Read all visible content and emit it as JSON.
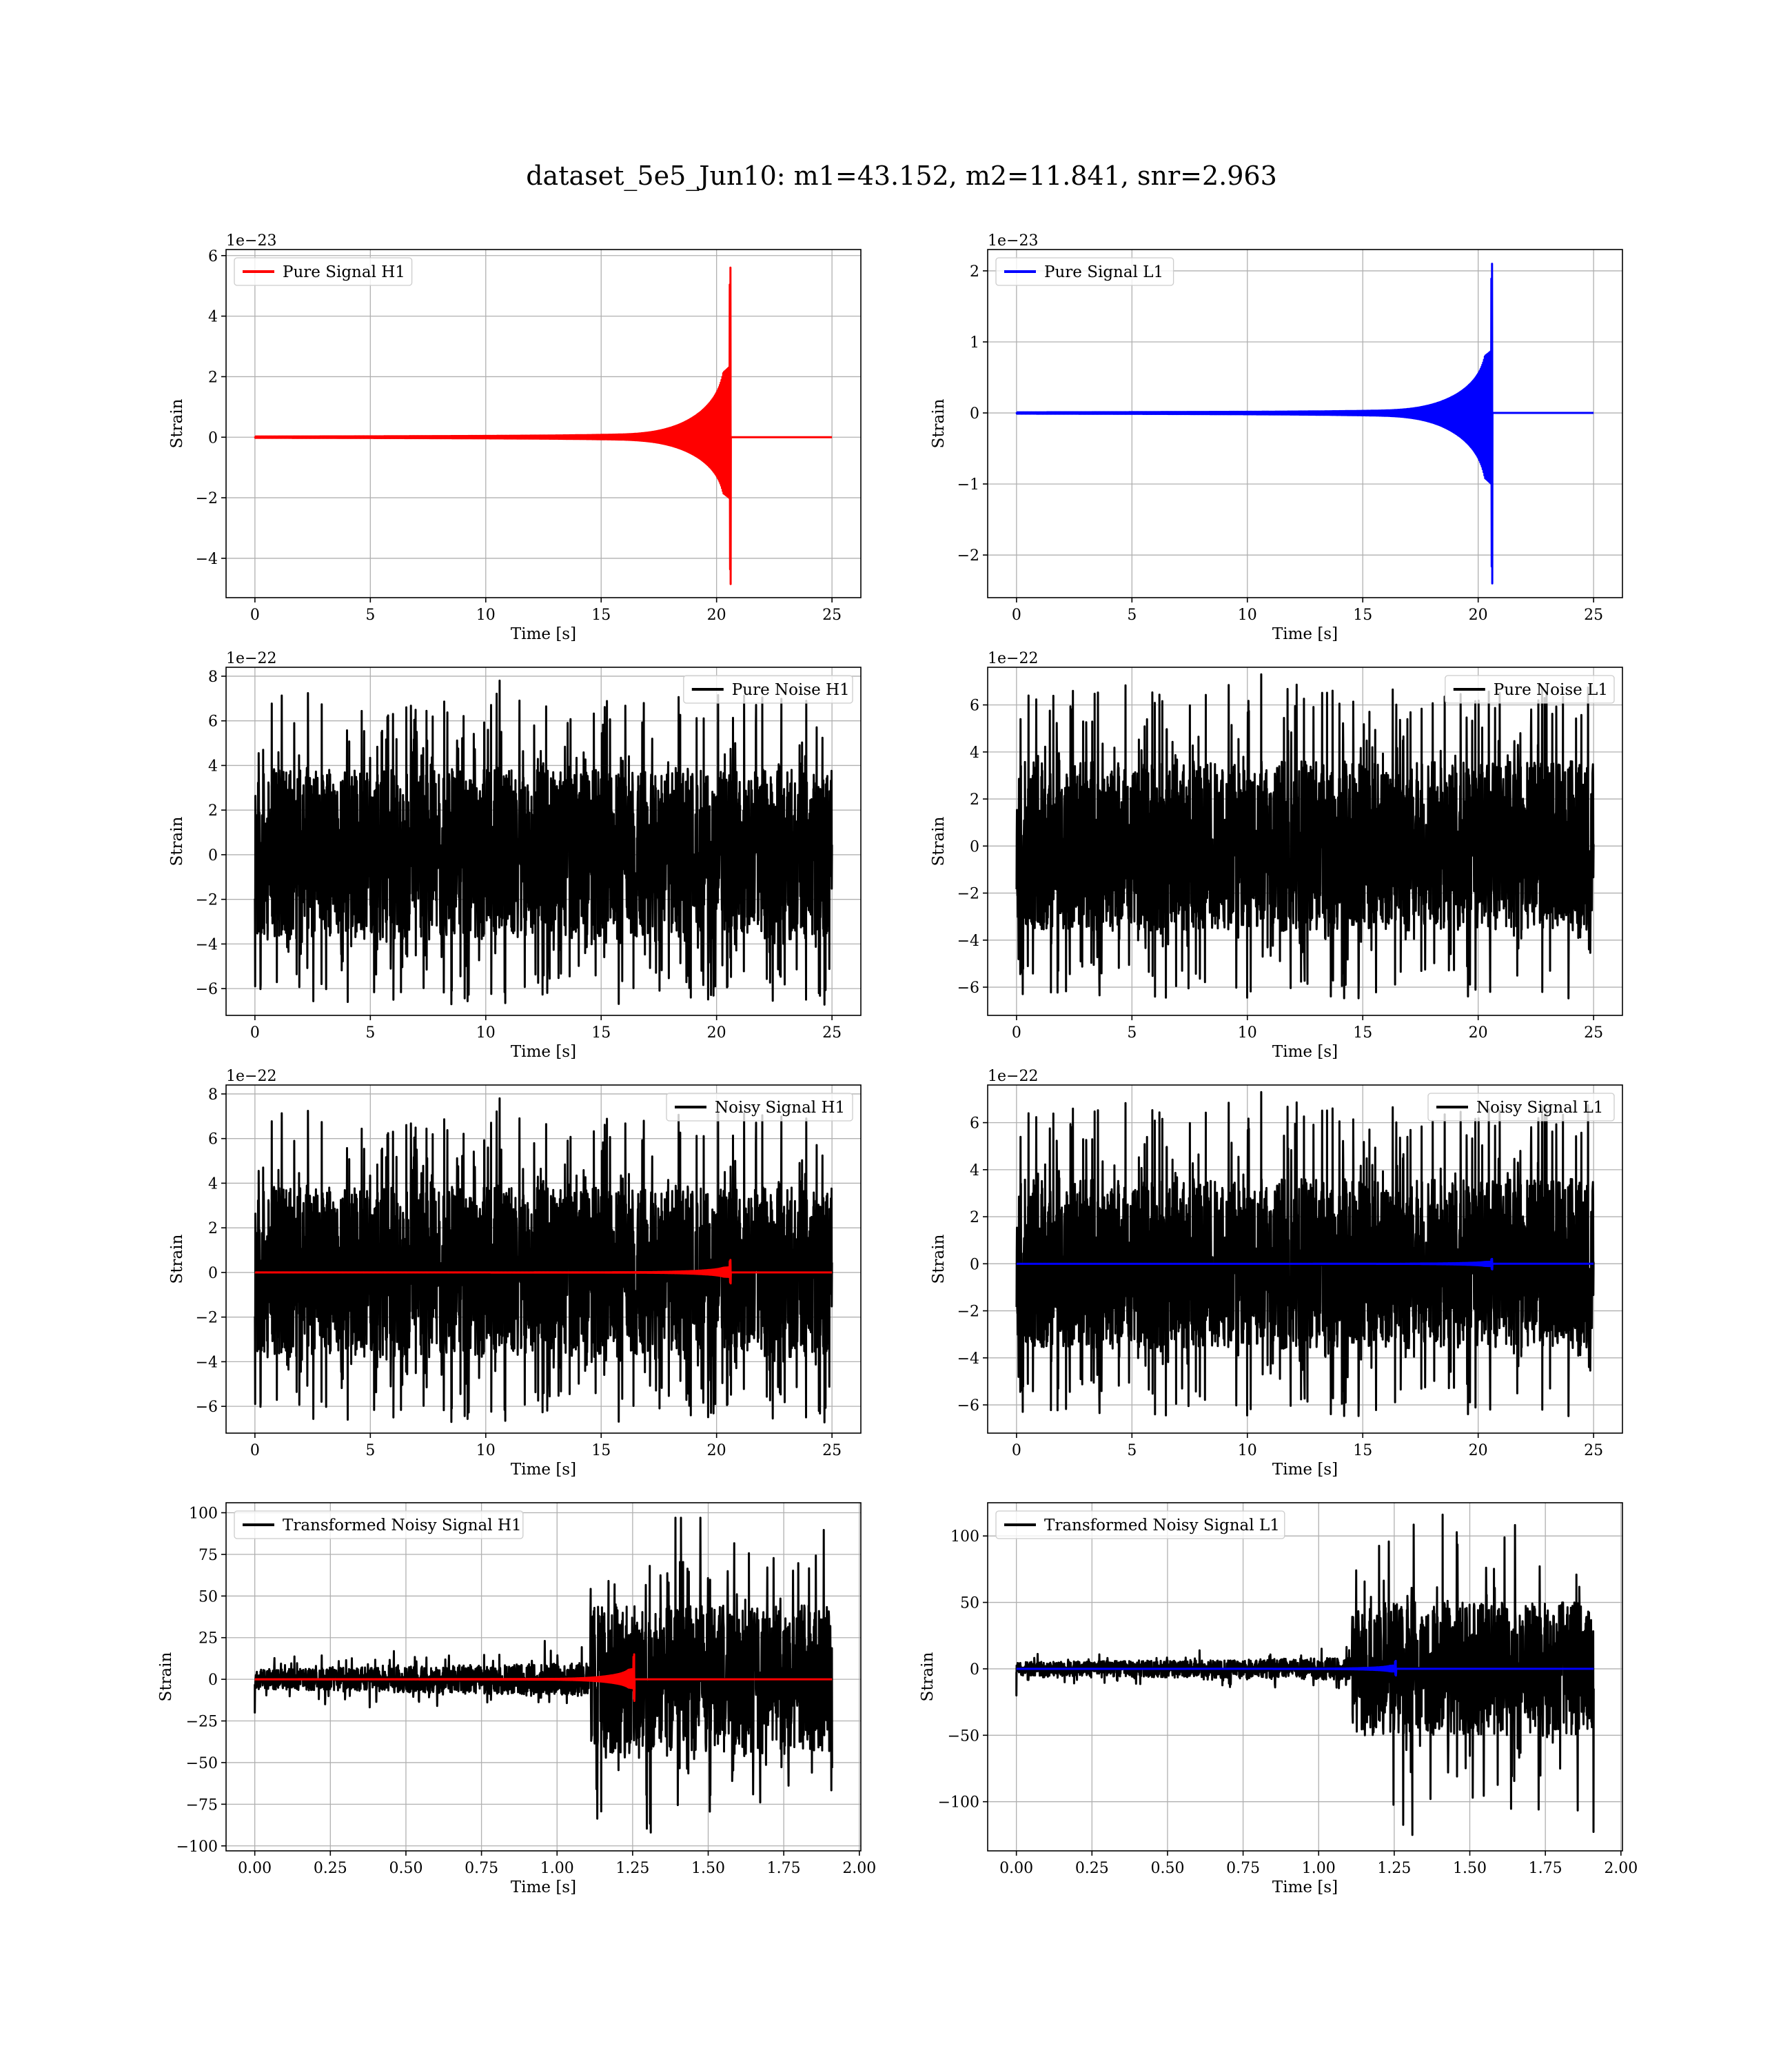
{
  "figure": {
    "title": "dataset_5e5_Jun10: m1=43.152, m2=11.841, snr=2.963"
  },
  "colors": {
    "h1_signal": "#ff0000",
    "l1_signal": "#0000ff",
    "noise": "#000000",
    "grid": "#b0b0b0"
  },
  "chart_data": [
    {
      "type": "line",
      "panel": "pure-signal-h1",
      "xlabel": "Time [s]",
      "ylabel": "Strain",
      "offset_text": "1e−23",
      "xlim": [
        -1.25,
        26.25
      ],
      "ylim": [
        -5.3,
        6.2
      ],
      "xticks": [
        0,
        5,
        10,
        15,
        20,
        25
      ],
      "xtick_labels": [
        "0",
        "5",
        "10",
        "15",
        "20",
        "25"
      ],
      "yticks": [
        -4,
        -2,
        0,
        2,
        4,
        6
      ],
      "ytick_labels": [
        "−4",
        "−2",
        "0",
        "2",
        "4",
        "6"
      ],
      "legend_position": "upper left",
      "series": [
        {
          "name": "Pure Signal H1",
          "color": "#ff0000",
          "kind": "chirp",
          "params": {
            "t_start": 0,
            "t_end": 25,
            "t_merge": 20.6,
            "peak_pos": 5.6,
            "peak_neg": -4.85,
            "scale": 1.0
          }
        }
      ]
    },
    {
      "type": "line",
      "panel": "pure-signal-l1",
      "xlabel": "Time [s]",
      "ylabel": "Strain",
      "offset_text": "1e−23",
      "xlim": [
        -1.25,
        26.25
      ],
      "ylim": [
        -2.6,
        2.3
      ],
      "xticks": [
        0,
        5,
        10,
        15,
        20,
        25
      ],
      "xtick_labels": [
        "0",
        "5",
        "10",
        "15",
        "20",
        "25"
      ],
      "yticks": [
        -2,
        -1,
        0,
        1,
        2
      ],
      "ytick_labels": [
        "−2",
        "−1",
        "0",
        "1",
        "2"
      ],
      "legend_position": "upper left",
      "series": [
        {
          "name": "Pure Signal L1",
          "color": "#0000ff",
          "kind": "chirp",
          "params": {
            "t_start": 0,
            "t_end": 25,
            "t_merge": 20.6,
            "peak_pos": 2.1,
            "peak_neg": -2.4,
            "scale": 1.0
          }
        }
      ]
    },
    {
      "type": "line",
      "panel": "pure-noise-h1",
      "xlabel": "Time [s]",
      "ylabel": "Strain",
      "offset_text": "1e−22",
      "xlim": [
        -1.25,
        26.25
      ],
      "ylim": [
        -7.2,
        8.4
      ],
      "xticks": [
        0,
        5,
        10,
        15,
        20,
        25
      ],
      "xtick_labels": [
        "0",
        "5",
        "10",
        "15",
        "20",
        "25"
      ],
      "yticks": [
        -6,
        -4,
        -2,
        0,
        2,
        4,
        6,
        8
      ],
      "ytick_labels": [
        "−6",
        "−4",
        "−2",
        "0",
        "2",
        "4",
        "6",
        "8"
      ],
      "legend_position": "upper right",
      "series": [
        {
          "name": "Pure Noise H1",
          "color": "#000000",
          "kind": "noise",
          "params": {
            "t_start": 0,
            "t_end": 25,
            "core": 3.8,
            "max": 7.8,
            "min": -6.5,
            "seed": 11
          }
        }
      ]
    },
    {
      "type": "line",
      "panel": "pure-noise-l1",
      "xlabel": "Time [s]",
      "ylabel": "Strain",
      "offset_text": "1e−22",
      "xlim": [
        -1.25,
        26.25
      ],
      "ylim": [
        -7.2,
        7.6
      ],
      "xticks": [
        0,
        5,
        10,
        15,
        20,
        25
      ],
      "xtick_labels": [
        "0",
        "5",
        "10",
        "15",
        "20",
        "25"
      ],
      "yticks": [
        -6,
        -4,
        -2,
        0,
        2,
        4,
        6
      ],
      "ytick_labels": [
        "−6",
        "−4",
        "−2",
        "0",
        "2",
        "4",
        "6"
      ],
      "legend_position": "upper right",
      "series": [
        {
          "name": "Pure Noise L1",
          "color": "#000000",
          "kind": "noise",
          "params": {
            "t_start": 0,
            "t_end": 25,
            "core": 3.6,
            "max": 7.3,
            "min": -6.4,
            "seed": 23
          }
        }
      ]
    },
    {
      "type": "line",
      "panel": "noisy-signal-h1",
      "xlabel": "Time [s]",
      "ylabel": "Strain",
      "offset_text": "1e−22",
      "xlim": [
        -1.25,
        26.25
      ],
      "ylim": [
        -7.2,
        8.4
      ],
      "xticks": [
        0,
        5,
        10,
        15,
        20,
        25
      ],
      "xtick_labels": [
        "0",
        "5",
        "10",
        "15",
        "20",
        "25"
      ],
      "yticks": [
        -6,
        -4,
        -2,
        0,
        2,
        4,
        6,
        8
      ],
      "ytick_labels": [
        "−6",
        "−4",
        "−2",
        "0",
        "2",
        "4",
        "6",
        "8"
      ],
      "legend_position": "upper right",
      "series": [
        {
          "name": "Noisy Signal H1",
          "color": "#000000",
          "kind": "noise",
          "params": {
            "t_start": 0,
            "t_end": 25,
            "core": 3.8,
            "max": 7.8,
            "min": -6.5,
            "seed": 11
          }
        },
        {
          "name": "",
          "color": "#ff0000",
          "kind": "chirp",
          "params": {
            "t_start": 0,
            "t_end": 25,
            "t_merge": 20.6,
            "peak_pos": 0.56,
            "peak_neg": -0.49,
            "scale": 1.0
          }
        }
      ]
    },
    {
      "type": "line",
      "panel": "noisy-signal-l1",
      "xlabel": "Time [s]",
      "ylabel": "Strain",
      "offset_text": "1e−22",
      "xlim": [
        -1.25,
        26.25
      ],
      "ylim": [
        -7.2,
        7.6
      ],
      "xticks": [
        0,
        5,
        10,
        15,
        20,
        25
      ],
      "xtick_labels": [
        "0",
        "5",
        "10",
        "15",
        "20",
        "25"
      ],
      "yticks": [
        -6,
        -4,
        -2,
        0,
        2,
        4,
        6
      ],
      "ytick_labels": [
        "−6",
        "−4",
        "−2",
        "0",
        "2",
        "4",
        "6"
      ],
      "legend_position": "upper right",
      "series": [
        {
          "name": "Noisy Signal L1",
          "color": "#000000",
          "kind": "noise",
          "params": {
            "t_start": 0,
            "t_end": 25,
            "core": 3.6,
            "max": 7.3,
            "min": -6.4,
            "seed": 23
          }
        },
        {
          "name": "",
          "color": "#0000ff",
          "kind": "chirp",
          "params": {
            "t_start": 0,
            "t_end": 25,
            "t_merge": 20.6,
            "peak_pos": 0.21,
            "peak_neg": -0.24,
            "scale": 1.0
          }
        }
      ]
    },
    {
      "type": "line",
      "panel": "transformed-noisy-signal-h1",
      "xlabel": "Time [s]",
      "ylabel": "Strain",
      "offset_text": "",
      "xlim": [
        -0.095,
        2.005
      ],
      "ylim": [
        -103,
        106
      ],
      "xticks": [
        0,
        0.25,
        0.5,
        0.75,
        1.0,
        1.25,
        1.5,
        1.75,
        2.0
      ],
      "xtick_labels": [
        "0.00",
        "0.25",
        "0.50",
        "0.75",
        "1.00",
        "1.25",
        "1.50",
        "1.75",
        "2.00"
      ],
      "yticks": [
        -100,
        -75,
        -50,
        -25,
        0,
        25,
        50,
        75,
        100
      ],
      "ytick_labels": [
        "−100",
        "−75",
        "−50",
        "−25",
        "0",
        "25",
        "50",
        "75",
        "100"
      ],
      "legend_position": "upper left",
      "series": [
        {
          "name": "Transformed Noisy Signal H1",
          "color": "#000000",
          "kind": "transformed",
          "params": {
            "t_start": 0,
            "t_end": 1.91,
            "t_jump": 1.11,
            "low_core": 6,
            "high_core": 45,
            "max": 97,
            "min": -92,
            "seed": 37
          }
        },
        {
          "name": "",
          "color": "#ff0000",
          "kind": "chirp",
          "params": {
            "t_start": 0,
            "t_end": 1.91,
            "t_merge": 1.255,
            "peak_pos": 15,
            "peak_neg": -13,
            "scale": 0.0748
          }
        }
      ]
    },
    {
      "type": "line",
      "panel": "transformed-noisy-signal-l1",
      "xlabel": "Time [s]",
      "ylabel": "Strain",
      "offset_text": "",
      "xlim": [
        -0.095,
        2.005
      ],
      "ylim": [
        -137,
        125
      ],
      "xticks": [
        0,
        0.25,
        0.5,
        0.75,
        1.0,
        1.25,
        1.5,
        1.75,
        2.0
      ],
      "xtick_labels": [
        "0.00",
        "0.25",
        "0.50",
        "0.75",
        "1.00",
        "1.25",
        "1.50",
        "1.75",
        "2.00"
      ],
      "yticks": [
        -100,
        -50,
        0,
        50,
        100
      ],
      "ytick_labels": [
        "−100",
        "−50",
        "0",
        "50",
        "100"
      ],
      "legend_position": "upper left",
      "series": [
        {
          "name": "Transformed Noisy Signal L1",
          "color": "#000000",
          "kind": "transformed",
          "params": {
            "t_start": 0,
            "t_end": 1.91,
            "t_jump": 1.11,
            "low_core": 5,
            "high_core": 50,
            "max": 116,
            "min": -125,
            "seed": 51
          }
        },
        {
          "name": "",
          "color": "#0000ff",
          "kind": "chirp",
          "params": {
            "t_start": 0,
            "t_end": 1.91,
            "t_merge": 1.255,
            "peak_pos": 6,
            "peak_neg": -5,
            "scale": 0.0748
          }
        }
      ]
    }
  ]
}
